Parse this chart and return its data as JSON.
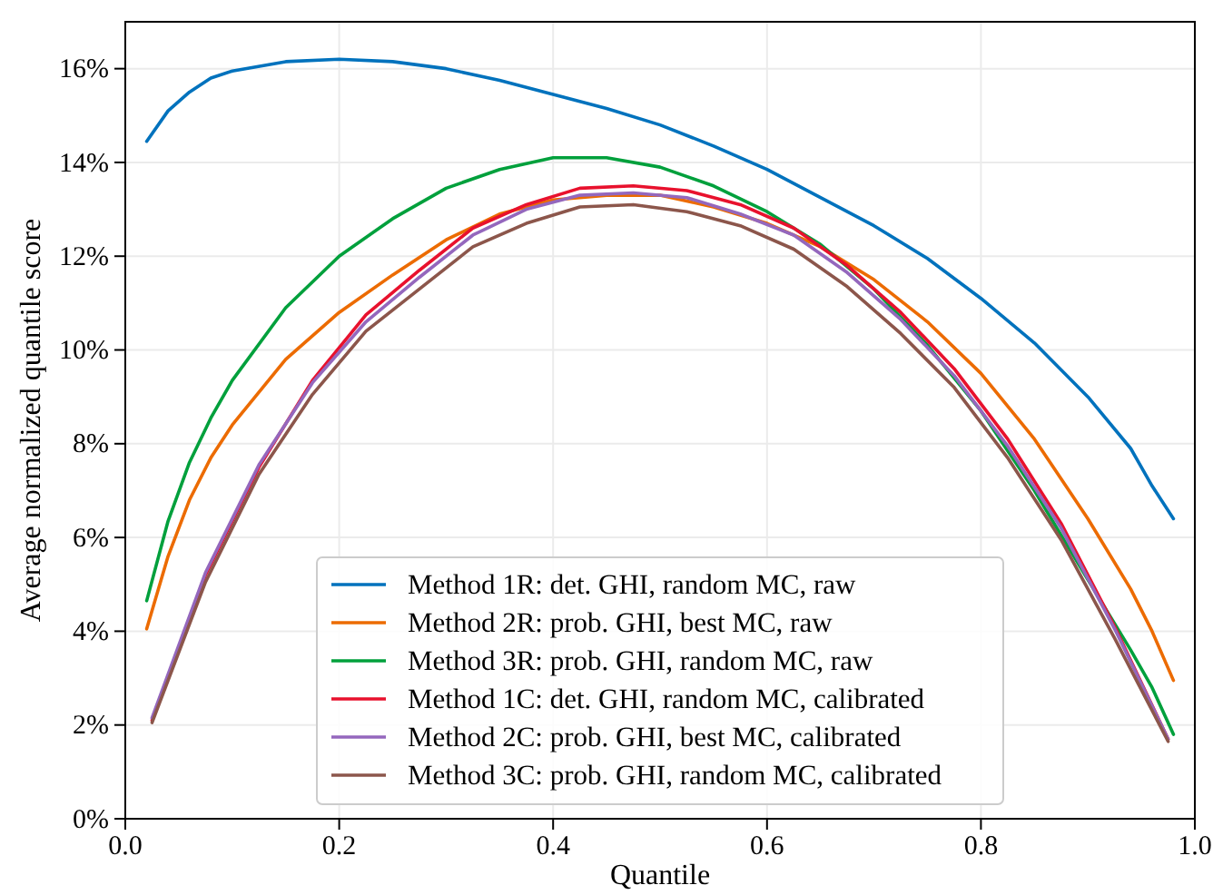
{
  "chart_data": {
    "type": "line",
    "xlabel": "Quantile",
    "ylabel": "Average normalized quantile score",
    "xlim": [
      0,
      1
    ],
    "xticks": [
      {
        "value": 0,
        "label": "0.0"
      },
      {
        "value": 0.2,
        "label": "0.2"
      },
      {
        "value": 0.4,
        "label": "0.4"
      },
      {
        "value": 0.6,
        "label": "0.6"
      },
      {
        "value": 0.8,
        "label": "0.8"
      },
      {
        "value": 1,
        "label": "1.0"
      }
    ],
    "ylim": [
      0,
      17
    ],
    "yticks": [
      {
        "value": 0,
        "label": "0%"
      },
      {
        "value": 2,
        "label": "2%"
      },
      {
        "value": 4,
        "label": "4%"
      },
      {
        "value": 6,
        "label": "6%"
      },
      {
        "value": 8,
        "label": "8%"
      },
      {
        "value": 10,
        "label": "10%"
      },
      {
        "value": 12,
        "label": "12%"
      },
      {
        "value": 14,
        "label": "14%"
      },
      {
        "value": 16,
        "label": "16%"
      }
    ],
    "grid": true,
    "legend": "bottom",
    "line_style": "solid",
    "marker": "none",
    "series": [
      {
        "name": "Method 1R: det. GHI, random MC, raw",
        "color": "#0072bd",
        "x": [
          0.02,
          0.04,
          0.06,
          0.08,
          0.1,
          0.15,
          0.2,
          0.25,
          0.3,
          0.35,
          0.4,
          0.45,
          0.5,
          0.55,
          0.6,
          0.65,
          0.7,
          0.75,
          0.8,
          0.85,
          0.9,
          0.94,
          0.96,
          0.98
        ],
        "values": [
          14.45,
          15.1,
          15.5,
          15.8,
          15.95,
          16.15,
          16.2,
          16.15,
          16.0,
          15.75,
          15.45,
          15.15,
          14.8,
          14.35,
          13.85,
          13.25,
          12.65,
          11.95,
          11.1,
          10.15,
          9.0,
          7.9,
          7.1,
          6.4
        ]
      },
      {
        "name": "Method 2R: prob. GHI, best MC, raw",
        "color": "#ec6b00",
        "x": [
          0.02,
          0.04,
          0.06,
          0.08,
          0.1,
          0.15,
          0.2,
          0.25,
          0.3,
          0.35,
          0.4,
          0.45,
          0.5,
          0.55,
          0.6,
          0.65,
          0.7,
          0.75,
          0.8,
          0.85,
          0.9,
          0.94,
          0.96,
          0.98
        ],
        "values": [
          4.05,
          5.6,
          6.8,
          7.7,
          8.4,
          9.8,
          10.8,
          11.6,
          12.35,
          12.9,
          13.2,
          13.3,
          13.3,
          13.05,
          12.7,
          12.2,
          11.5,
          10.6,
          9.5,
          8.1,
          6.4,
          4.9,
          4.0,
          2.95
        ]
      },
      {
        "name": "Method 3R: prob. GHI, random MC, raw",
        "color": "#00a03c",
        "x": [
          0.02,
          0.04,
          0.06,
          0.08,
          0.1,
          0.15,
          0.2,
          0.25,
          0.3,
          0.35,
          0.4,
          0.45,
          0.5,
          0.55,
          0.6,
          0.65,
          0.7,
          0.75,
          0.8,
          0.85,
          0.9,
          0.94,
          0.96,
          0.98
        ],
        "values": [
          4.65,
          6.35,
          7.6,
          8.55,
          9.35,
          10.9,
          12.0,
          12.8,
          13.45,
          13.85,
          14.1,
          14.1,
          13.9,
          13.5,
          12.95,
          12.25,
          11.3,
          10.1,
          8.7,
          7.0,
          5.1,
          3.6,
          2.8,
          1.8
        ]
      },
      {
        "name": "Method 1C: det. GHI, random MC, calibrated",
        "color": "#e8112d",
        "x": [
          0.025,
          0.075,
          0.125,
          0.175,
          0.225,
          0.275,
          0.325,
          0.375,
          0.425,
          0.475,
          0.525,
          0.575,
          0.625,
          0.675,
          0.725,
          0.775,
          0.825,
          0.875,
          0.925,
          0.975
        ],
        "values": [
          2.1,
          5.2,
          7.5,
          9.35,
          10.75,
          11.7,
          12.6,
          13.1,
          13.45,
          13.5,
          13.4,
          13.1,
          12.6,
          11.8,
          10.8,
          9.6,
          8.1,
          6.3,
          4.1,
          1.7
        ]
      },
      {
        "name": "Method 2C: prob. GHI, best MC, calibrated",
        "color": "#9467bd",
        "x": [
          0.025,
          0.075,
          0.125,
          0.175,
          0.225,
          0.275,
          0.325,
          0.375,
          0.425,
          0.475,
          0.525,
          0.575,
          0.625,
          0.675,
          0.725,
          0.775,
          0.825,
          0.875,
          0.925,
          0.975
        ],
        "values": [
          2.15,
          5.25,
          7.55,
          9.3,
          10.6,
          11.55,
          12.45,
          13.0,
          13.3,
          13.35,
          13.25,
          12.9,
          12.45,
          11.65,
          10.65,
          9.45,
          7.95,
          6.2,
          4.05,
          1.7
        ]
      },
      {
        "name": "Method 3C: prob. GHI, random MC, calibrated",
        "color": "#8c564b",
        "x": [
          0.025,
          0.075,
          0.125,
          0.175,
          0.225,
          0.275,
          0.325,
          0.375,
          0.425,
          0.475,
          0.525,
          0.575,
          0.625,
          0.675,
          0.725,
          0.775,
          0.825,
          0.875,
          0.925,
          0.975
        ],
        "values": [
          2.05,
          5.05,
          7.35,
          9.05,
          10.4,
          11.3,
          12.2,
          12.7,
          13.05,
          13.1,
          12.95,
          12.65,
          12.15,
          11.35,
          10.35,
          9.2,
          7.7,
          5.95,
          3.85,
          1.65
        ]
      }
    ]
  }
}
